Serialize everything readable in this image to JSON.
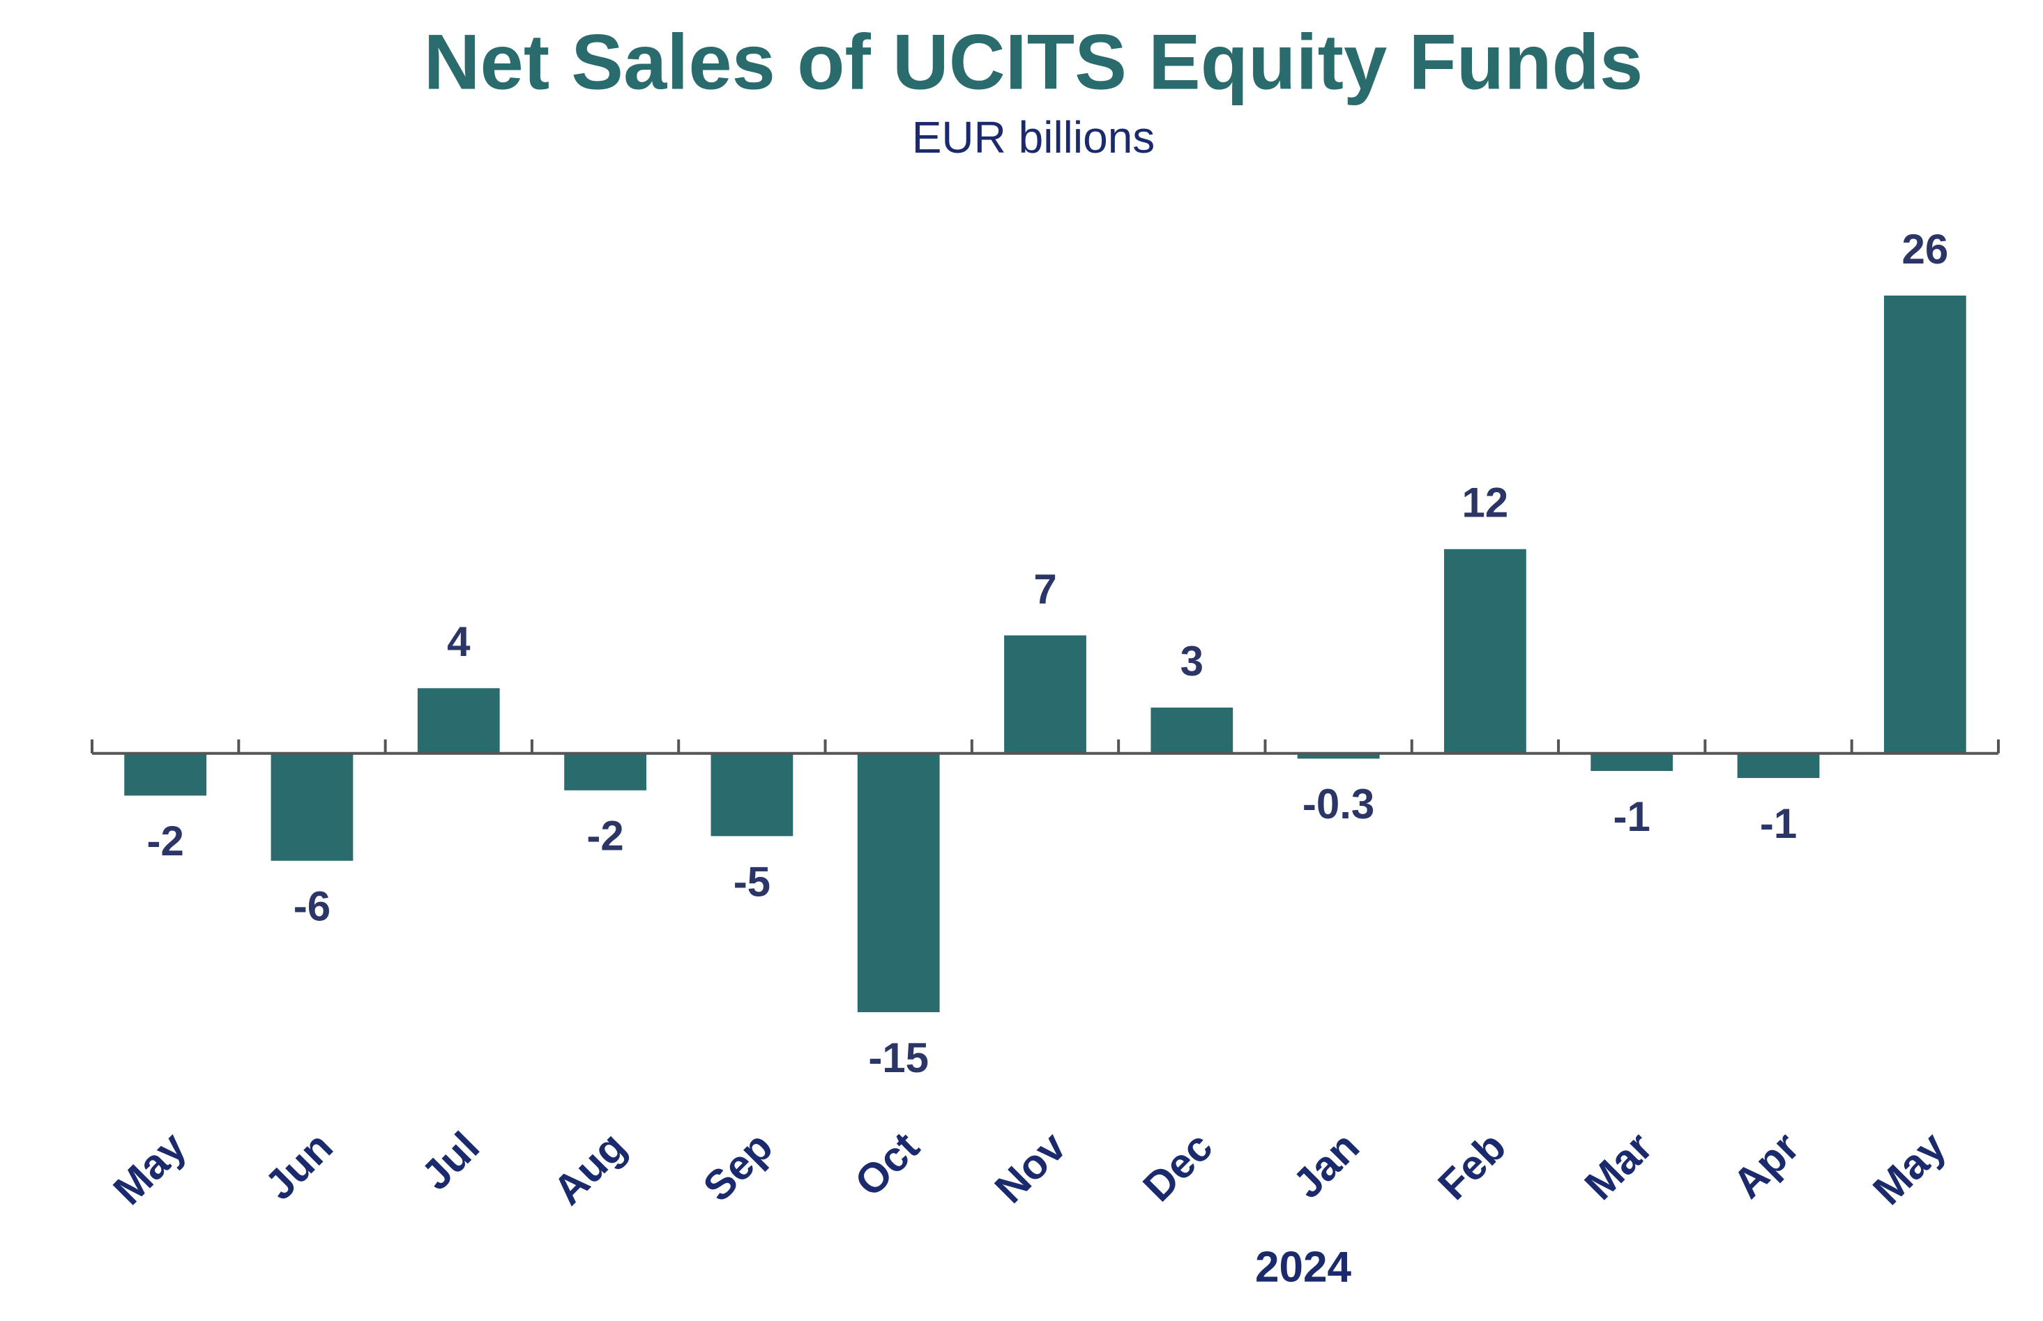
{
  "chart_data": {
    "type": "bar",
    "title": "Net Sales of UCITS Equity Funds",
    "subtitle": "EUR billions",
    "categories": [
      "May",
      "Jun",
      "Jul",
      "Aug",
      "Sep",
      "Oct",
      "Nov",
      "Dec",
      "Jan",
      "Feb",
      "Mar",
      "Apr",
      "May"
    ],
    "year_label": "2024",
    "values": [
      -2.4,
      -6.1,
      3.7,
      -2.1,
      -4.7,
      -14.7,
      6.7,
      2.6,
      -0.3,
      11.6,
      -1.0,
      -1.4,
      26
    ],
    "value_labels": [
      "-2",
      "-6",
      "4",
      "-2",
      "-5",
      "-15",
      "7",
      "3",
      "-0.3",
      "12",
      "-1",
      "-1",
      "26"
    ],
    "color": "#2a6b6e"
  }
}
